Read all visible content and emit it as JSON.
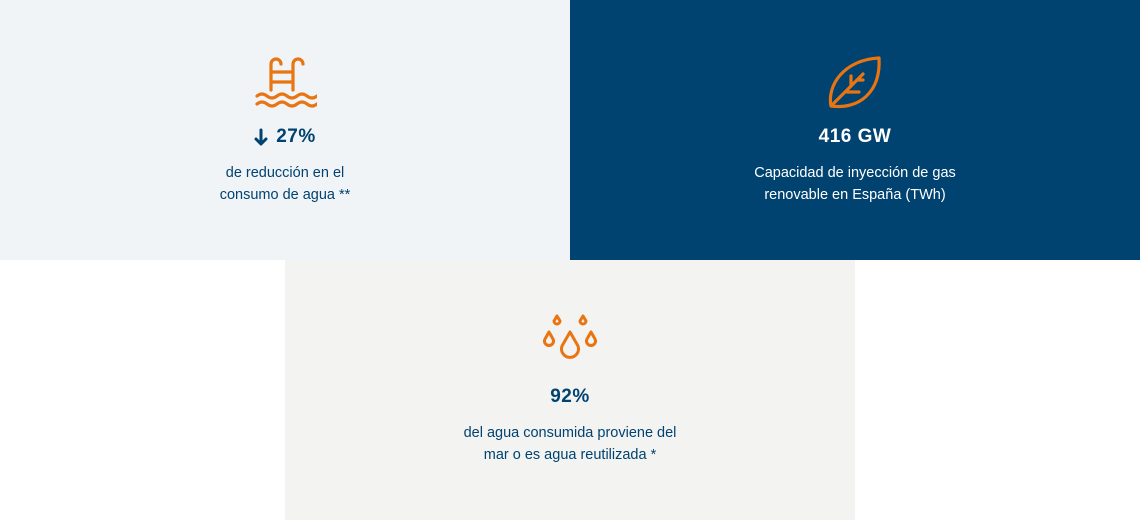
{
  "colors": {
    "accent": "#e87511",
    "navy": "#004270",
    "light_bg": "#f1f4f7",
    "gray_bg": "#f3f3f2"
  },
  "cards": [
    {
      "icon": "pool-ladder-icon",
      "trend_icon": "arrow-down-icon",
      "value": "27%",
      "description": "de reducción en el consumo de agua **"
    },
    {
      "icon": "leaf-icon",
      "value": "416 GW",
      "description": "Capacidad de inyección de gas renovable en España (TWh)"
    },
    {
      "icon": "water-drops-icon",
      "value": "92%",
      "description": "del agua consumida proviene del mar o es agua reutilizada *"
    }
  ]
}
